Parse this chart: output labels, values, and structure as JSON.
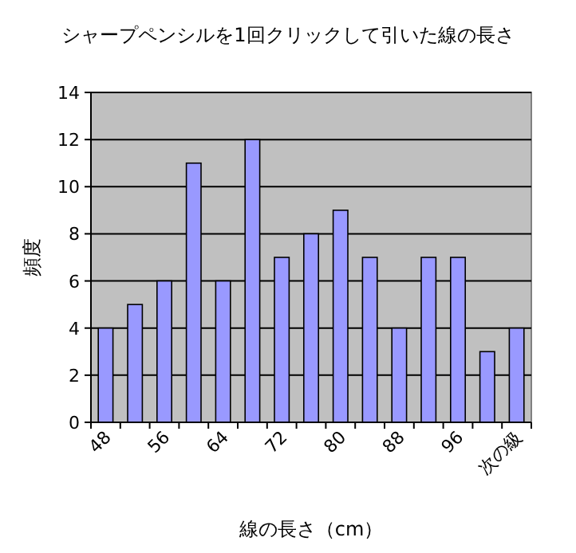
{
  "chart_data": {
    "type": "bar",
    "title": "シャープペンシルを1回クリックして引いた線の長さ",
    "xlabel": "線の長さ（cm）",
    "ylabel": "頻度",
    "categories": [
      "48",
      null,
      "56",
      null,
      "64",
      null,
      "72",
      null,
      "80",
      null,
      "88",
      null,
      "96",
      null,
      "次の級"
    ],
    "values": [
      4,
      5,
      6,
      11,
      6,
      12,
      7,
      8,
      9,
      7,
      4,
      7,
      7,
      3,
      4
    ],
    "color": "#9999ff",
    "ylim": [
      0,
      14
    ],
    "yticks": [
      0,
      2,
      4,
      6,
      8,
      10,
      12,
      14
    ],
    "grid": "y"
  }
}
